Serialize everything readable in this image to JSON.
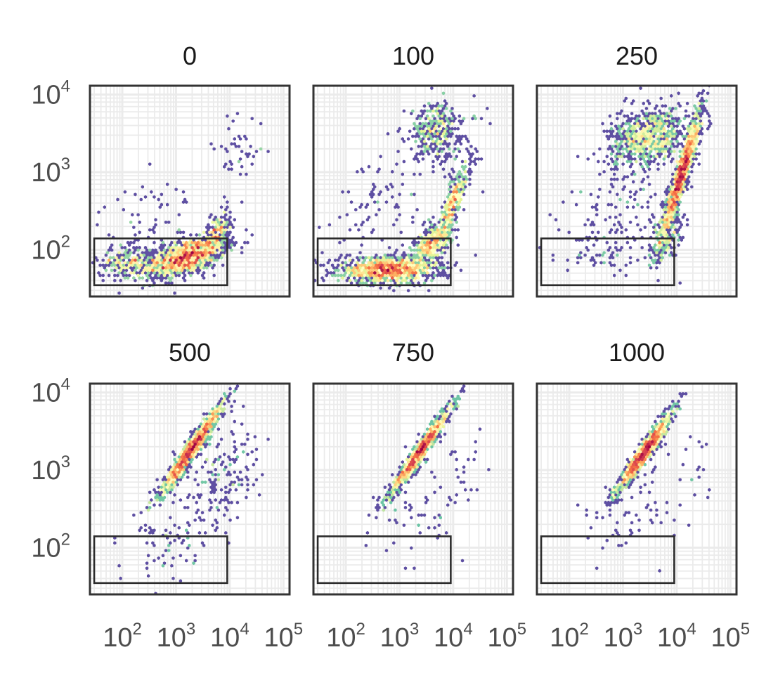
{
  "chart_data": {
    "type": "heatmap",
    "layout": "small multiples, 2 rows x 3 columns",
    "x_scale": "log10",
    "y_scale": "log10",
    "xlim": [
      25,
      130000
    ],
    "ylim": [
      25,
      13000
    ],
    "x_ticks": [
      {
        "base": "10",
        "exp": "2",
        "value": 100
      },
      {
        "base": "10",
        "exp": "3",
        "value": 1000
      },
      {
        "base": "10",
        "exp": "4",
        "value": 10000
      },
      {
        "base": "10",
        "exp": "5",
        "value": 100000
      }
    ],
    "y_ticks": [
      {
        "base": "10",
        "exp": "2",
        "value": 100
      },
      {
        "base": "10",
        "exp": "3",
        "value": 1000
      },
      {
        "base": "10",
        "exp": "4",
        "value": 10000
      }
    ],
    "grid": true,
    "colormap": [
      "#5e4fa2",
      "#3288bd",
      "#66c2a5",
      "#abdda4",
      "#e6f598",
      "#ffffbf",
      "#fee08b",
      "#fdae61",
      "#f46d43",
      "#d53e4f",
      "#9e0142"
    ],
    "gate": {
      "x": [
        30,
        9000
      ],
      "y": [
        35,
        140
      ]
    },
    "panels": [
      {
        "title": "0",
        "clusters": [
          {
            "cx": 1500,
            "cy": 80,
            "sx": 0.38,
            "sy": 0.13,
            "rho": 0.55,
            "n": 1300
          },
          {
            "cx": 120,
            "cy": 70,
            "sx": 0.25,
            "sy": 0.1,
            "rho": 0.1,
            "n": 250
          },
          {
            "cx": 6000,
            "cy": 170,
            "sx": 0.12,
            "sy": 0.13,
            "rho": 0.5,
            "n": 200
          }
        ],
        "scatter": [
          {
            "cx": 300,
            "cy": 250,
            "sx": 0.45,
            "sy": 0.25,
            "rho": 0.3,
            "n": 60
          },
          {
            "cx": 15000,
            "cy": 2000,
            "sx": 0.25,
            "sy": 0.3,
            "rho": 0.2,
            "n": 45
          }
        ]
      },
      {
        "title": "100",
        "clusters": [
          {
            "cx": 600,
            "cy": 55,
            "sx": 0.45,
            "sy": 0.08,
            "rho": 0.0,
            "n": 1300
          },
          {
            "cx": 4000,
            "cy": 120,
            "sx": 0.18,
            "sy": 0.15,
            "rho": 0.6,
            "n": 500
          },
          {
            "cx": 10000,
            "cy": 400,
            "sx": 0.12,
            "sy": 0.2,
            "rho": 0.8,
            "n": 350
          },
          {
            "cx": 4500,
            "cy": 3500,
            "sx": 0.22,
            "sy": 0.18,
            "rho": 0.1,
            "n": 350
          }
        ],
        "scatter": [
          {
            "cx": 500,
            "cy": 400,
            "sx": 0.5,
            "sy": 0.35,
            "rho": 0.2,
            "n": 90
          },
          {
            "cx": 15000,
            "cy": 1800,
            "sx": 0.2,
            "sy": 0.3,
            "rho": 0.4,
            "n": 80
          }
        ]
      },
      {
        "title": "250",
        "clusters": [
          {
            "cx": 12000,
            "cy": 900,
            "sx": 0.18,
            "sy": 0.4,
            "rho": 0.93,
            "n": 1500
          },
          {
            "cx": 3000,
            "cy": 2800,
            "sx": 0.35,
            "sy": 0.18,
            "rho": 0.3,
            "n": 900
          },
          {
            "cx": 6000,
            "cy": 130,
            "sx": 0.15,
            "sy": 0.15,
            "rho": 0.5,
            "n": 150
          }
        ],
        "scatter": [
          {
            "cx": 1000,
            "cy": 350,
            "sx": 0.55,
            "sy": 0.4,
            "rho": 0.3,
            "n": 150
          },
          {
            "cx": 400,
            "cy": 80,
            "sx": 0.4,
            "sy": 0.1,
            "rho": 0.0,
            "n": 40
          }
        ]
      },
      {
        "title": "500",
        "clusters": [
          {
            "cx": 2000,
            "cy": 1900,
            "sx": 0.3,
            "sy": 0.3,
            "rho": 0.97,
            "n": 1500
          }
        ],
        "scatter": [
          {
            "cx": 8000,
            "cy": 900,
            "sx": 0.3,
            "sy": 0.35,
            "rho": 0.3,
            "n": 150
          },
          {
            "cx": 1200,
            "cy": 150,
            "sx": 0.55,
            "sy": 0.35,
            "rho": 0.4,
            "n": 100
          }
        ]
      },
      {
        "title": "750",
        "clusters": [
          {
            "cx": 2500,
            "cy": 1800,
            "sx": 0.27,
            "sy": 0.27,
            "rho": 0.97,
            "n": 1400
          }
        ],
        "scatter": [
          {
            "cx": 2500,
            "cy": 300,
            "sx": 0.45,
            "sy": 0.35,
            "rho": 0.3,
            "n": 70
          },
          {
            "cx": 15000,
            "cy": 700,
            "sx": 0.15,
            "sy": 0.2,
            "rho": 0.0,
            "n": 12
          }
        ]
      },
      {
        "title": "1000",
        "clusters": [
          {
            "cx": 2500,
            "cy": 1700,
            "sx": 0.25,
            "sy": 0.25,
            "rho": 0.96,
            "n": 1400
          }
        ],
        "scatter": [
          {
            "cx": 2000,
            "cy": 300,
            "sx": 0.45,
            "sy": 0.35,
            "rho": 0.3,
            "n": 60
          },
          {
            "cx": 20000,
            "cy": 1000,
            "sx": 0.2,
            "sy": 0.3,
            "rho": 0.0,
            "n": 15
          }
        ]
      }
    ]
  }
}
